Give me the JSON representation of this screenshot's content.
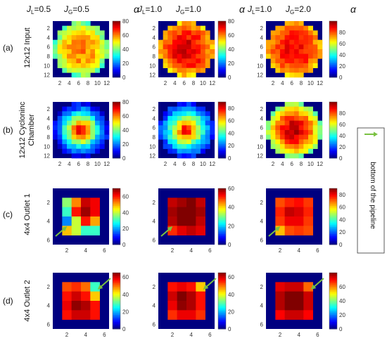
{
  "figure": {
    "columns": [
      {
        "jl_label": "J",
        "jl_sub": "L",
        "jl_value": "=0.5",
        "jg_label": "J",
        "jg_sub": "G",
        "jg_value": "=0.5"
      },
      {
        "jl_label": "J",
        "jl_sub": "L",
        "jl_value": "=1.0",
        "jg_label": "J",
        "jg_sub": "G",
        "jg_value": "=1.0"
      },
      {
        "jl_label": "J",
        "jl_sub": "L",
        "jl_value": "=1.0",
        "jg_label": "J",
        "jg_sub": "G",
        "jg_value": "=2.0"
      }
    ],
    "alpha_symbol": "α",
    "rows": [
      {
        "letter": "(a)",
        "label_lines": [
          "12x12 Input"
        ]
      },
      {
        "letter": "(b)",
        "label_lines": [
          "12x12 Cycloninc",
          "Chamber"
        ]
      },
      {
        "letter": "(c)",
        "label_lines": [
          "4x4 Outlet 1"
        ]
      },
      {
        "letter": "(d)",
        "label_lines": [
          "4x4 Outlet 2"
        ]
      }
    ],
    "legend": {
      "text": "bottom of the pipeline",
      "arrow_color": "#7ac142"
    },
    "colormap": "jet",
    "arrow_color": "#7ac142"
  },
  "chart_data": [
    {
      "id": "a1",
      "type": "heatmap",
      "grid_size": 12,
      "domain": "circular",
      "center_value": 60,
      "edge_value": 36,
      "falloff": "flat",
      "seed": 11,
      "xticks": [
        "2",
        "4",
        "6",
        "8",
        "10",
        "12"
      ],
      "yticks": [
        "2",
        "4",
        "6",
        "8",
        "10",
        "12"
      ],
      "colorbar": {
        "range": [
          0,
          80
        ],
        "ticks": [
          "0",
          "20",
          "40",
          "60",
          "80"
        ]
      }
    },
    {
      "id": "a2",
      "type": "heatmap",
      "grid_size": 12,
      "domain": "circular",
      "center_value": 72,
      "edge_value": 52,
      "falloff": "flat",
      "seed": 23,
      "xticks": [
        "2",
        "4",
        "6",
        "8",
        "10",
        "12"
      ],
      "yticks": [
        "2",
        "4",
        "6",
        "8",
        "10",
        "12"
      ],
      "colorbar": {
        "range": [
          0,
          80
        ],
        "ticks": [
          "0",
          "20",
          "40",
          "60",
          "80"
        ]
      }
    },
    {
      "id": "a3",
      "type": "heatmap",
      "grid_size": 12,
      "domain": "circular",
      "center_value": 88,
      "edge_value": 66,
      "falloff": "flat",
      "seed": 37,
      "xticks": [
        "2",
        "4",
        "6",
        "8",
        "10",
        "12"
      ],
      "yticks": [
        "2",
        "4",
        "6",
        "8",
        "10",
        "12"
      ],
      "colorbar": {
        "range": [
          0,
          100
        ],
        "ticks": [
          "0",
          "20",
          "40",
          "60",
          "80"
        ]
      }
    },
    {
      "id": "b1",
      "type": "heatmap",
      "grid_size": 12,
      "domain": "circular",
      "center_value": 82,
      "edge_value": 8,
      "falloff": "peaked",
      "seed": 41,
      "xticks": [
        "2",
        "4",
        "6",
        "8",
        "10",
        "12"
      ],
      "yticks": [
        "2",
        "4",
        "6",
        "8",
        "10",
        "12"
      ],
      "colorbar": {
        "range": [
          0,
          80
        ],
        "ticks": [
          "0",
          "20",
          "40",
          "60",
          "80"
        ]
      }
    },
    {
      "id": "b2",
      "type": "heatmap",
      "grid_size": 12,
      "domain": "circular",
      "center_value": 88,
      "edge_value": 14,
      "falloff": "peaked",
      "seed": 53,
      "xticks": [
        "2",
        "4",
        "6",
        "8",
        "10",
        "12"
      ],
      "yticks": [
        "2",
        "4",
        "6",
        "8",
        "10",
        "12"
      ],
      "colorbar": {
        "range": [
          0,
          90
        ],
        "ticks": [
          "0",
          "20",
          "40",
          "60",
          "80"
        ]
      }
    },
    {
      "id": "b3",
      "type": "heatmap",
      "grid_size": 12,
      "domain": "circular",
      "center_value": 96,
      "edge_value": 48,
      "falloff": "mid",
      "seed": 67,
      "xticks": [
        "2",
        "4",
        "6",
        "8",
        "10",
        "12"
      ],
      "yticks": [
        "2",
        "4",
        "6",
        "8",
        "10",
        "12"
      ],
      "colorbar": {
        "range": [
          0,
          100
        ],
        "ticks": [
          "0",
          "20",
          "40",
          "60",
          "80"
        ]
      }
    },
    {
      "id": "c1",
      "type": "heatmap",
      "grid_size": 6,
      "inner_range": [
        2,
        5
      ],
      "inner_values": [
        [
          36,
          52,
          65,
          62
        ],
        [
          30,
          60,
          68,
          62
        ],
        [
          18,
          40,
          60,
          50
        ],
        [
          48,
          40,
          30,
          30
        ]
      ],
      "arrow": "bottom-left",
      "xticks": [
        "2",
        "4",
        "6"
      ],
      "yticks": [
        "2",
        "4",
        "6"
      ],
      "colorbar": {
        "range": [
          0,
          70
        ],
        "ticks": [
          "0",
          "20",
          "40",
          "60"
        ]
      }
    },
    {
      "id": "c2",
      "type": "heatmap",
      "grid_size": 6,
      "inner_range": [
        2,
        5
      ],
      "inner_values": [
        [
          56,
          58,
          60,
          56
        ],
        [
          58,
          66,
          64,
          58
        ],
        [
          57,
          62,
          60,
          56
        ],
        [
          50,
          54,
          56,
          54
        ]
      ],
      "arrow": "bottom-left",
      "xticks": [
        "2",
        "4",
        "6"
      ],
      "yticks": [
        "2",
        "4",
        "6"
      ],
      "colorbar": {
        "range": [
          0,
          60
        ],
        "ticks": [
          "0",
          "20",
          "40",
          "60"
        ]
      }
    },
    {
      "id": "c3",
      "type": "heatmap",
      "grid_size": 6,
      "inner_range": [
        2,
        5
      ],
      "inner_values": [
        [
          72,
          76,
          78,
          74
        ],
        [
          76,
          84,
          82,
          76
        ],
        [
          74,
          80,
          80,
          74
        ],
        [
          62,
          72,
          74,
          72
        ]
      ],
      "arrow": "bottom-left",
      "xticks": [
        "2",
        "4",
        "6"
      ],
      "yticks": [
        "2",
        "4",
        "6"
      ],
      "colorbar": {
        "range": [
          0,
          90
        ],
        "ticks": [
          "0",
          "20",
          "40",
          "60",
          "80"
        ]
      }
    },
    {
      "id": "d1",
      "type": "heatmap",
      "grid_size": 6,
      "inner_range": [
        2,
        5
      ],
      "inner_values": [
        [
          52,
          54,
          50,
          28
        ],
        [
          56,
          60,
          56,
          44
        ],
        [
          58,
          64,
          62,
          56
        ],
        [
          56,
          60,
          60,
          56
        ]
      ],
      "arrow": "top-right",
      "xticks": [
        "2",
        "4",
        "6"
      ],
      "yticks": [
        "2",
        "4",
        "6"
      ],
      "colorbar": {
        "range": [
          0,
          65
        ],
        "ticks": [
          "0",
          "20",
          "40",
          "60"
        ]
      }
    },
    {
      "id": "d2",
      "type": "heatmap",
      "grid_size": 6,
      "inner_range": [
        2,
        5
      ],
      "inner_values": [
        [
          56,
          58,
          56,
          44
        ],
        [
          60,
          66,
          62,
          56
        ],
        [
          58,
          64,
          62,
          56
        ],
        [
          54,
          58,
          58,
          54
        ]
      ],
      "arrow": "top-right",
      "xticks": [
        "2",
        "4",
        "6"
      ],
      "yticks": [
        "2",
        "4",
        "6"
      ],
      "colorbar": {
        "range": [
          0,
          65
        ],
        "ticks": [
          "0",
          "20",
          "40",
          "60"
        ]
      }
    },
    {
      "id": "d3",
      "type": "heatmap",
      "grid_size": 6,
      "inner_range": [
        2,
        5
      ],
      "inner_values": [
        [
          72,
          74,
          74,
          62
        ],
        [
          76,
          82,
          80,
          74
        ],
        [
          76,
          80,
          80,
          74
        ],
        [
          70,
          74,
          74,
          70
        ]
      ],
      "arrow": "top-right",
      "xticks": [
        "2",
        "4",
        "6"
      ],
      "yticks": [
        "2",
        "4",
        "6"
      ],
      "colorbar": {
        "range": [
          0,
          80
        ],
        "ticks": [
          "0",
          "20",
          "40",
          "60"
        ]
      }
    }
  ]
}
